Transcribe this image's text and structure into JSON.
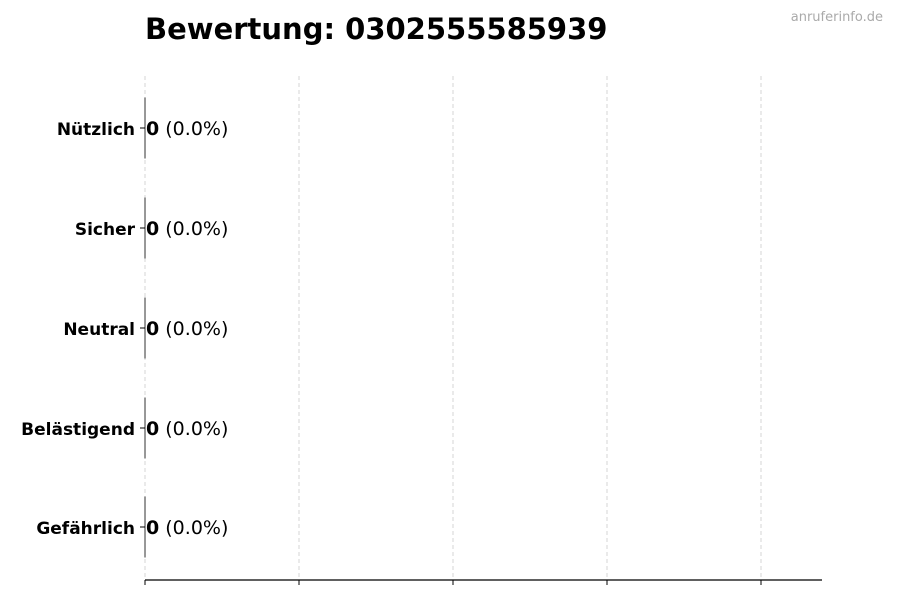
{
  "title": "Bewertung: 0302555585939",
  "watermark": "anruferinfo.de",
  "chart_data": {
    "type": "bar",
    "orientation": "horizontal",
    "title": "Bewertung: 0302555585939",
    "categories": [
      "Nützlich",
      "Sicher",
      "Neutral",
      "Belästigend",
      "Gefährlich"
    ],
    "values": [
      0,
      0,
      0,
      0,
      0
    ],
    "value_labels": [
      "0",
      "0",
      "0",
      "0",
      "0"
    ],
    "percent_labels": [
      "(0.0%)",
      "(0.0%)",
      "(0.0%)",
      "(0.0%)",
      "(0.0%)"
    ],
    "xlabel": "",
    "ylabel": "",
    "grid": "x dashed",
    "colors": {
      "bar_edge": "#333333",
      "grid": "#cccccc",
      "watermark": "#aaaaaa"
    }
  }
}
